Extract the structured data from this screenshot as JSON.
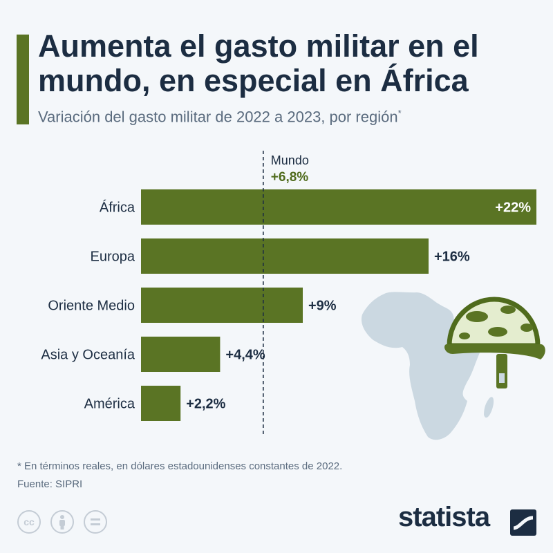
{
  "header": {
    "title": "Aumenta el gasto militar en el mundo, en especial en África",
    "subtitle": "Variación del gasto militar de 2022 a 2023, por región",
    "subtitle_mark": "*"
  },
  "chart_data": {
    "type": "bar",
    "orientation": "horizontal",
    "categories": [
      "África",
      "Europa",
      "Oriente Medio",
      "Asia y Oceanía",
      "América"
    ],
    "values": [
      22,
      16,
      9,
      4.4,
      2.2
    ],
    "value_labels": [
      "+22%",
      "+16%",
      "+9%",
      "+4,4%",
      "+2,2%"
    ],
    "xlim": [
      0,
      22
    ],
    "reference_line": {
      "label": "Mundo",
      "value": 6.8,
      "value_label": "+6,8%"
    },
    "colors": {
      "bar": "#5a7424",
      "text": "#1c2d42",
      "reference_value": "#4f6b1c"
    }
  },
  "footer": {
    "footnote": "* En términos reales, en dólares estadounidenses constantes de 2022.",
    "source": "Fuente: SIPRI",
    "license_icons": [
      "cc-icon",
      "attribution-icon",
      "no-derivatives-icon"
    ],
    "brand": "statista"
  }
}
